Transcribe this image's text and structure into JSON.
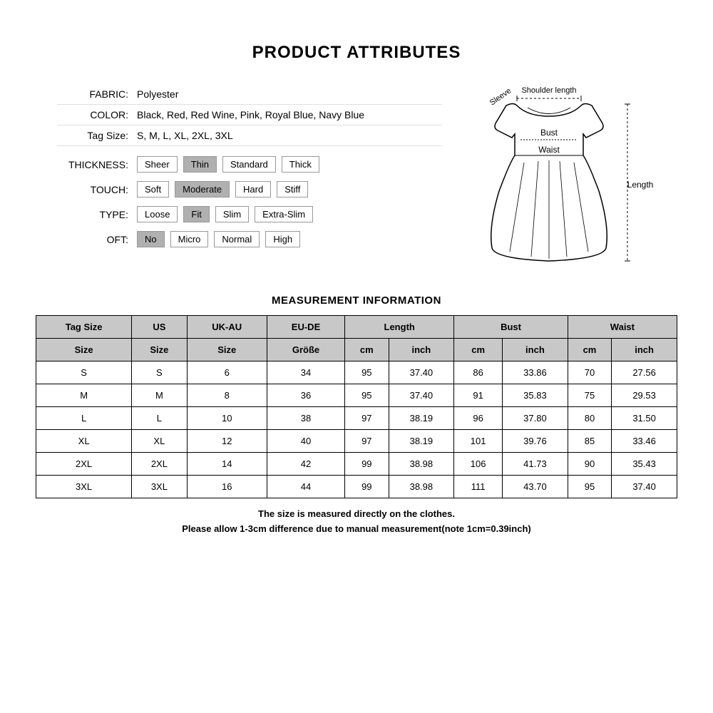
{
  "title": "PRODUCT ATTRIBUTES",
  "attributes": {
    "fabric": {
      "label": "FABRIC:",
      "value": "Polyester"
    },
    "color": {
      "label": "COLOR:",
      "value": "Black,  Red,  Red Wine,  Pink,  Royal Blue,  Navy Blue"
    },
    "tagsize": {
      "label": "Tag Size:",
      "value": "S,  M,  L,  XL,  2XL,  3XL"
    },
    "thickness": {
      "label": "THICKNESS:",
      "options": [
        "Sheer",
        "Thin",
        "Standard",
        "Thick"
      ],
      "selected": 1
    },
    "touch": {
      "label": "TOUCH:",
      "options": [
        "Soft",
        "Moderate",
        "Hard",
        "Stiff"
      ],
      "selected": 1
    },
    "type": {
      "label": "TYPE:",
      "options": [
        "Loose",
        "Fit",
        "Slim",
        "Extra-Slim"
      ],
      "selected": 1
    },
    "oft": {
      "label": "OFT:",
      "options": [
        "No",
        "Micro",
        "Normal",
        "High"
      ],
      "selected": 0
    }
  },
  "diagram": {
    "shoulder": "Shoulder length",
    "sleeve": "Sleeve",
    "bust": "Bust",
    "waist": "Waist",
    "length": "Length"
  },
  "measurement": {
    "title": "MEASUREMENT INFORMATION",
    "header1": [
      "Tag Size",
      "US",
      "UK-AU",
      "EU-DE",
      "Length",
      "Bust",
      "Waist"
    ],
    "header2": [
      "Size",
      "Size",
      "Size",
      "Größe",
      "cm",
      "inch",
      "cm",
      "inch",
      "cm",
      "inch"
    ],
    "rows": [
      [
        "S",
        "S",
        "6",
        "34",
        "95",
        "37.40",
        "86",
        "33.86",
        "70",
        "27.56"
      ],
      [
        "M",
        "M",
        "8",
        "36",
        "95",
        "37.40",
        "91",
        "35.83",
        "75",
        "29.53"
      ],
      [
        "L",
        "L",
        "10",
        "38",
        "97",
        "38.19",
        "96",
        "37.80",
        "80",
        "31.50"
      ],
      [
        "XL",
        "XL",
        "12",
        "40",
        "97",
        "38.19",
        "101",
        "39.76",
        "85",
        "33.46"
      ],
      [
        "2XL",
        "2XL",
        "14",
        "42",
        "99",
        "38.98",
        "106",
        "41.73",
        "90",
        "35.43"
      ],
      [
        "3XL",
        "3XL",
        "16",
        "44",
        "99",
        "38.98",
        "111",
        "43.70",
        "95",
        "37.40"
      ]
    ],
    "note1": "The size is measured directly on the clothes.",
    "note2": "Please allow 1-3cm difference due to manual measurement(note 1cm=0.39inch)"
  },
  "colors": {
    "selected_bg": "#b0b0b0",
    "header_bg": "#c8c8c8",
    "border": "#000000",
    "divider": "#e0e0e0"
  }
}
